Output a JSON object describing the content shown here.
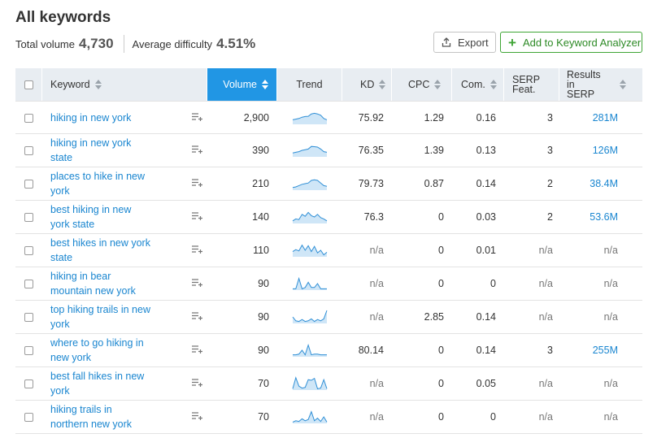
{
  "header": {
    "title": "All keywords",
    "total_volume_label": "Total volume",
    "total_volume_value": "4,730",
    "avg_difficulty_label": "Average difficulty",
    "avg_difficulty_value": "4.51%"
  },
  "toolbar": {
    "export_label": "Export",
    "add_analyzer_label": "Add to Keyword Analyzer"
  },
  "colors": {
    "accent": "#2196e4",
    "link": "#1a86d0",
    "green": "#3fa535",
    "header_bg": "#e8edf2"
  },
  "columns": {
    "keyword": "Keyword",
    "volume": "Volume",
    "trend": "Trend",
    "kd": "KD",
    "cpc": "CPC",
    "com": "Com.",
    "serp_line1": "SERP",
    "serp_line2": "Feat.",
    "results_line1": "Results in",
    "results_line2": "SERP"
  },
  "rows": [
    {
      "kw1": "hiking in new york",
      "kw2": "",
      "volume": "2,900",
      "kd": "75.92",
      "cpc": "1.29",
      "com": "0.16",
      "serp": "3",
      "results": "281M",
      "trend": [
        0.35,
        0.4,
        0.45,
        0.55,
        0.6,
        0.62,
        0.8,
        0.85,
        0.8,
        0.7,
        0.45,
        0.35
      ]
    },
    {
      "kw1": "hiking in new york",
      "kw2": "state",
      "volume": "390",
      "kd": "76.35",
      "cpc": "1.39",
      "com": "0.13",
      "serp": "3",
      "results": "126M",
      "trend": [
        0.3,
        0.35,
        0.4,
        0.5,
        0.55,
        0.6,
        0.8,
        0.78,
        0.75,
        0.6,
        0.4,
        0.35
      ]
    },
    {
      "kw1": "places to hike in new",
      "kw2": "york",
      "volume": "210",
      "kd": "79.73",
      "cpc": "0.87",
      "com": "0.14",
      "serp": "2",
      "results": "38.4M",
      "trend": [
        0.2,
        0.25,
        0.35,
        0.45,
        0.5,
        0.55,
        0.75,
        0.8,
        0.75,
        0.55,
        0.35,
        0.3
      ]
    },
    {
      "kw1": "best hiking in new",
      "kw2": "york state",
      "volume": "140",
      "kd": "76.3",
      "cpc": "0",
      "com": "0.03",
      "serp": "2",
      "results": "53.6M",
      "trend": [
        0.2,
        0.35,
        0.3,
        0.7,
        0.55,
        0.85,
        0.6,
        0.5,
        0.7,
        0.45,
        0.35,
        0.2
      ]
    },
    {
      "kw1": "best hikes in new york",
      "kw2": "state",
      "volume": "110",
      "kd": "n/a",
      "cpc": "0",
      "com": "0.01",
      "serp": "n/a",
      "results": "n/a",
      "trend": [
        0.4,
        0.55,
        0.45,
        0.9,
        0.5,
        0.85,
        0.4,
        0.8,
        0.3,
        0.5,
        0.15,
        0.35
      ]
    },
    {
      "kw1": "hiking in bear",
      "kw2": "mountain new york",
      "volume": "90",
      "kd": "n/a",
      "cpc": "0",
      "com": "0",
      "serp": "n/a",
      "results": "n/a",
      "trend": [
        0.1,
        0.1,
        0.9,
        0.1,
        0.2,
        0.6,
        0.2,
        0.2,
        0.5,
        0.1,
        0.1,
        0.1
      ]
    },
    {
      "kw1": "top hiking trails in new",
      "kw2": "york",
      "volume": "90",
      "kd": "n/a",
      "cpc": "2.85",
      "com": "0.14",
      "serp": "n/a",
      "results": "n/a",
      "trend": [
        0.5,
        0.2,
        0.15,
        0.3,
        0.15,
        0.2,
        0.35,
        0.15,
        0.3,
        0.2,
        0.35,
        1.0
      ]
    },
    {
      "kw1": "where to go hiking in",
      "kw2": "new york",
      "volume": "90",
      "kd": "80.14",
      "cpc": "0",
      "com": "0.14",
      "serp": "3",
      "results": "255M",
      "trend": [
        0.15,
        0.15,
        0.2,
        0.5,
        0.15,
        0.9,
        0.15,
        0.2,
        0.2,
        0.15,
        0.15,
        0.15
      ]
    },
    {
      "kw1": "best fall hikes in new",
      "kw2": "york",
      "volume": "70",
      "kd": "n/a",
      "cpc": "0",
      "com": "0.05",
      "serp": "n/a",
      "results": "n/a",
      "trend": [
        0.1,
        0.95,
        0.3,
        0.15,
        0.2,
        0.8,
        0.75,
        0.9,
        0.1,
        0.15,
        0.8,
        0.1
      ]
    },
    {
      "kw1": "hiking trails in",
      "kw2": "northern new york",
      "volume": "70",
      "kd": "n/a",
      "cpc": "0",
      "com": "0",
      "serp": "n/a",
      "results": "n/a",
      "trend": [
        0.1,
        0.2,
        0.15,
        0.35,
        0.2,
        0.3,
        0.9,
        0.2,
        0.4,
        0.15,
        0.5,
        0.1
      ]
    }
  ]
}
